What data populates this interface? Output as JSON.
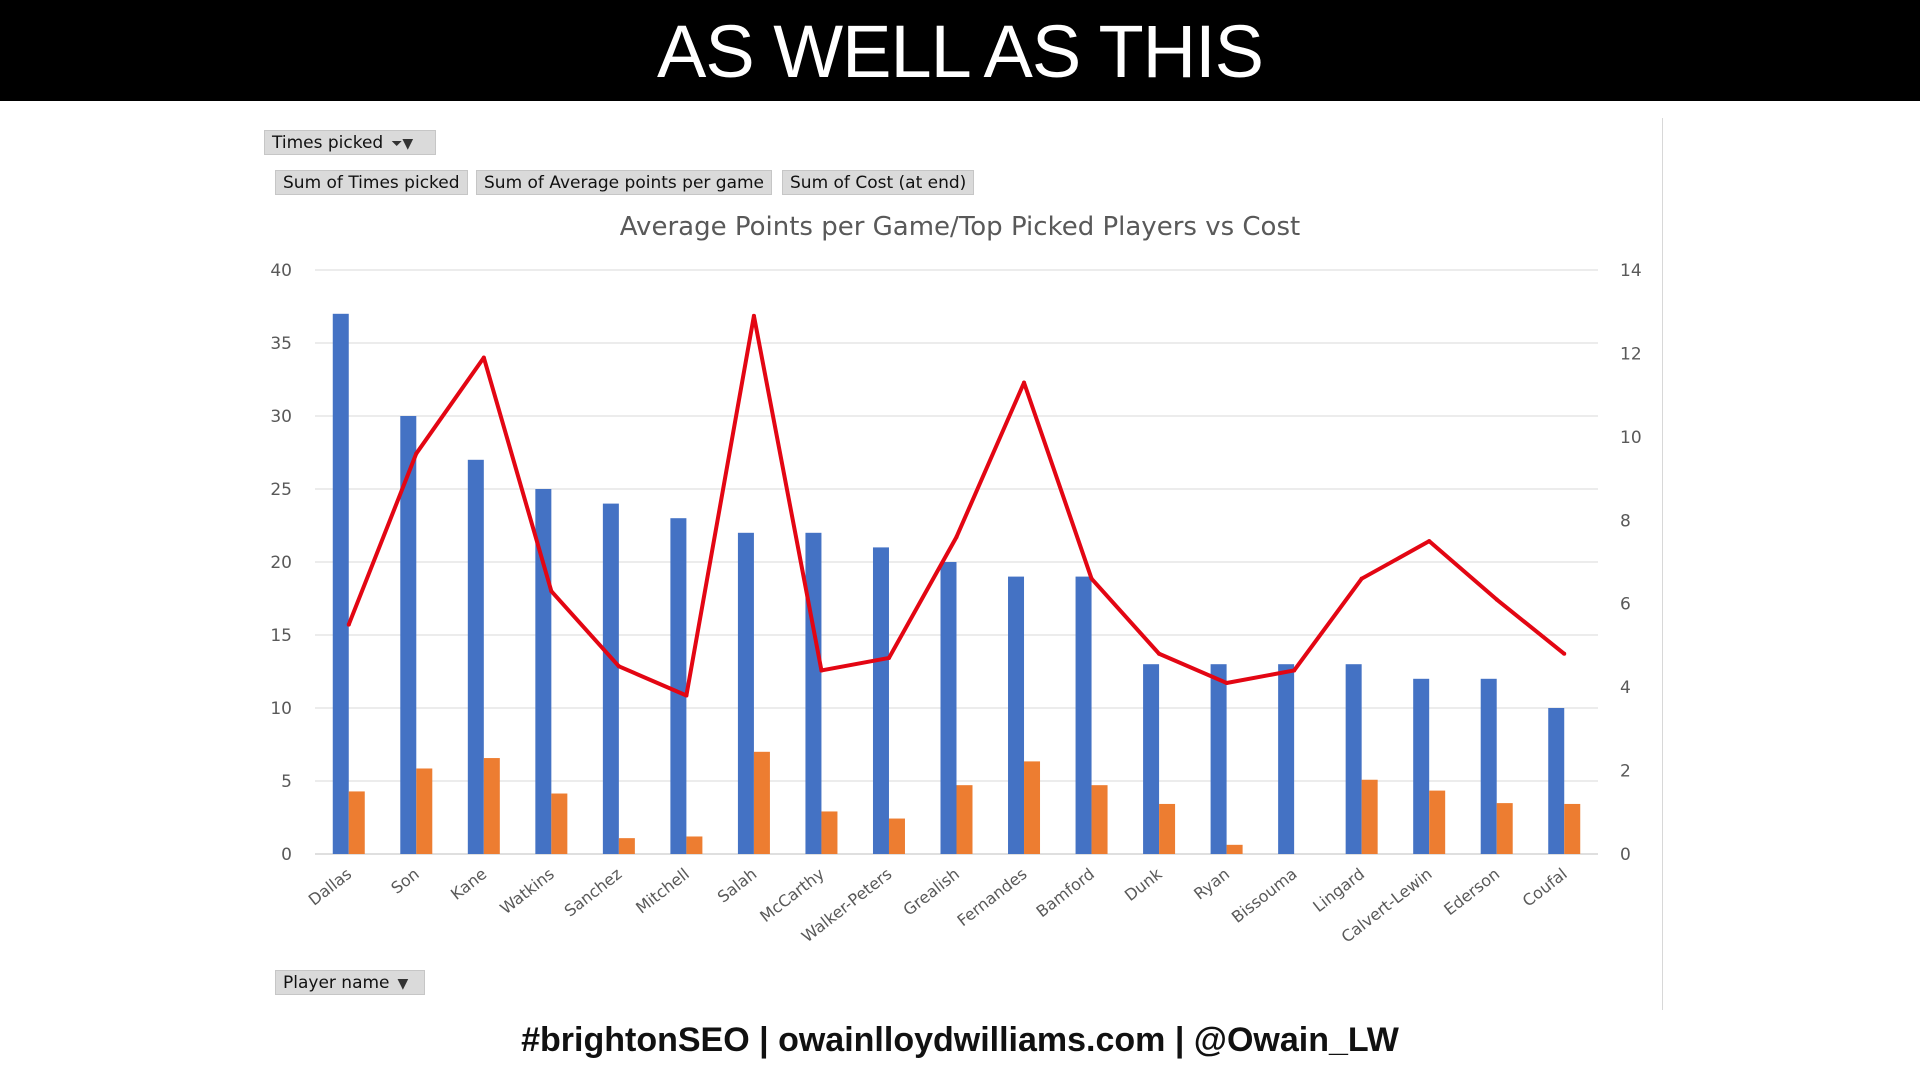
{
  "slide": {
    "title": "AS WELL AS THIS",
    "footer": "#brightonSEO | owainlloydwilliams.com | @Owain_LW"
  },
  "pivot": {
    "filter_label": "Times picked",
    "field_buttons": [
      "Sum of Times picked",
      "Sum of Average points per game",
      "Sum of Cost (at end)"
    ],
    "axis_field": "Player name"
  },
  "colors": {
    "times_picked": "#4472c4",
    "avg_points": "#ed7d31",
    "cost": "#e30613"
  },
  "chart_data": {
    "type": "bar",
    "title": "Average Points per Game/Top Picked Players vs Cost",
    "categories": [
      "Dallas",
      "Son",
      "Kane",
      "Watkins",
      "Sanchez",
      "Mitchell",
      "Salah",
      "McCarthy",
      "Walker-Peters",
      "Grealish",
      "Fernandes",
      "Bamford",
      "Dunk",
      "Ryan",
      "Bissouma",
      "Lingard",
      "Calvert-Lewin",
      "Ederson",
      "Coufal"
    ],
    "series": [
      {
        "name": "Sum of Times picked",
        "type": "bar",
        "axis": "left",
        "values": [
          37,
          30,
          27,
          25,
          24,
          23,
          22,
          22,
          21,
          20,
          19,
          19,
          13,
          13,
          13,
          13,
          12,
          12,
          10
        ]
      },
      {
        "name": "Sum of Average points per game",
        "type": "bar",
        "axis": "right",
        "values": [
          1.5,
          2.05,
          2.3,
          1.45,
          0.38,
          0.42,
          2.45,
          1.02,
          0.85,
          1.65,
          2.22,
          1.65,
          1.2,
          0.22,
          0,
          1.78,
          1.52,
          1.22,
          1.2
        ]
      },
      {
        "name": "Sum of Cost (at end)",
        "type": "line",
        "axis": "right",
        "values": [
          5.5,
          9.6,
          11.9,
          6.3,
          4.5,
          3.8,
          12.9,
          4.4,
          4.7,
          7.6,
          11.3,
          6.6,
          4.8,
          4.1,
          4.4,
          6.6,
          7.5,
          6.1,
          4.8
        ]
      }
    ],
    "y_left": {
      "min": 0,
      "max": 40,
      "ticks": [
        "0",
        "5",
        "10",
        "15",
        "20",
        "25",
        "30",
        "35",
        "40"
      ]
    },
    "y_right": {
      "min": 0,
      "max": 14,
      "ticks": [
        "0",
        "2",
        "4",
        "6",
        "8",
        "10",
        "12",
        "14"
      ]
    },
    "grid": true,
    "legend": "none"
  }
}
